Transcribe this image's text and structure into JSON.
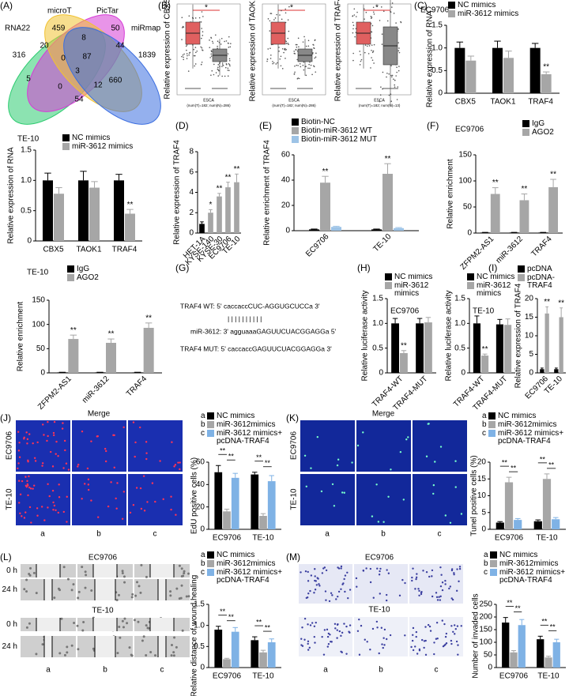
{
  "panel_labels": [
    "(A)",
    "(B)",
    "(C)",
    "(D)",
    "(E)",
    "(F)",
    "(G)",
    "(H)",
    "(I)",
    "(J)",
    "(K)",
    "(L)",
    "(M)"
  ],
  "venn": {
    "sets": [
      {
        "name": "RNA22",
        "color": "#2ecc71"
      },
      {
        "name": "microT",
        "color": "#d63cd6"
      },
      {
        "name": "PicTar",
        "color": "#f1c232"
      },
      {
        "name": "miRmap",
        "color": "#3d6fe0"
      }
    ],
    "counts": [
      316,
      459,
      50,
      1839,
      20,
      8,
      44,
      0,
      87,
      660,
      5,
      3,
      12,
      54,
      0
    ]
  },
  "expression_plots": [
    {
      "ylabel": "Relative expression of CBX5",
      "star": "*",
      "xlabel": "ESCA",
      "note": "(num(T)=182; num(N)=286)"
    },
    {
      "ylabel": "Relative expression of TAOK1",
      "star": "*",
      "xlabel": "ESCA",
      "note": "(num(T)=182; num(N)=286)"
    },
    {
      "ylabel": "Relative expression of TRAF4",
      "star": "*",
      "xlabel": "ESCA",
      "note": "(num(T)=182; num(N)=13)"
    }
  ],
  "sequence_panel": {
    "lines": [
      "TRAF4  WT: 5' caccaccCUC-AGGUGCUCCa 3'",
      "| | | |   | | | | | |",
      "miR-3612: 3' agguaaaGAGUUCUACGGAGGa 5'",
      "TRAF4  MUT: 5' caccaccGAGUUCUACGGAGGa 3'"
    ]
  },
  "micrographs": [
    {
      "title": "Merge",
      "rows": [
        "EC9706",
        "TE-10"
      ],
      "cols": [
        "a",
        "b",
        "c"
      ]
    },
    {
      "title": "Merge",
      "rows": [
        "EC9706",
        "TE-10"
      ],
      "cols": [
        "a",
        "b",
        "c"
      ]
    },
    {
      "groups": [
        {
          "title": "EC9706",
          "rows": [
            "0 h",
            "24 h"
          ]
        },
        {
          "title": "TE-10",
          "rows": [
            "0 h",
            "24 h"
          ]
        }
      ],
      "cols": [
        "a",
        "b",
        "c"
      ]
    },
    {
      "groups": [
        {
          "title": "EC9706"
        },
        {
          "title": "TE-10"
        }
      ],
      "cols": [
        "a",
        "b",
        "c"
      ]
    }
  ],
  "chart_data": [
    {
      "type": "bar",
      "title": "EC9706",
      "ylabel": "Relative expression of RNA",
      "categories": [
        "CBX5",
        "TAOK1",
        "TRAF4"
      ],
      "series": [
        {
          "name": "NC mimics",
          "color": "#000000",
          "values": [
            1,
            1,
            1
          ],
          "errors": [
            0.13,
            0.15,
            0.1
          ]
        },
        {
          "name": "miR-3612 mimics",
          "color": "#a6a6a6",
          "values": [
            0.72,
            0.78,
            0.42
          ],
          "errors": [
            0.1,
            0.15,
            0.05
          ],
          "sig": [
            null,
            null,
            "**"
          ]
        }
      ],
      "ylim": [
        0,
        1.5
      ],
      "yticks": [
        0,
        0.5,
        {
          "value": 1,
          "label": "1.0"
        },
        1.5
      ]
    },
    {
      "type": "bar",
      "title": "TE-10",
      "ylabel": "Relative expression of RNA",
      "categories": [
        "CBX5",
        "TAOK1",
        "TRAF4"
      ],
      "series": [
        {
          "name": "NC mimics",
          "color": "#000000",
          "values": [
            1,
            1,
            1
          ],
          "errors": [
            0.12,
            0.15,
            0.1
          ]
        },
        {
          "name": "miR-3612 mimics",
          "color": "#a6a6a6",
          "values": [
            0.78,
            0.88,
            0.45
          ],
          "errors": [
            0.1,
            0.1,
            0.07
          ],
          "sig": [
            null,
            null,
            "**"
          ]
        }
      ],
      "ylim": [
        0,
        1.5
      ],
      "yticks": [
        0,
        0.5,
        {
          "value": 1,
          "label": "1.0"
        },
        1.5
      ]
    },
    {
      "type": "bar",
      "ylabel": "Relative expression of TRAF4",
      "categories": [
        "HET-1A",
        "KYSE-140",
        "KYSE-30",
        "EC9706",
        "TE-10"
      ],
      "values": [
        0.9,
        2.0,
        3.6,
        4.5,
        5.0
      ],
      "errors": [
        0.2,
        0.3,
        0.3,
        0.5,
        0.8
      ],
      "sig": [
        null,
        "*",
        "**",
        "**",
        "**"
      ],
      "colors": [
        "#000000",
        "#a6a6a6",
        "#a6a6a6",
        "#a6a6a6",
        "#a6a6a6"
      ],
      "ylim": [
        0,
        8
      ],
      "yticks": [
        0,
        2,
        4,
        6,
        8
      ]
    },
    {
      "type": "bar",
      "ylabel": "Relative enrichment of TRAF4",
      "categories": [
        "EC9706",
        "TE-10"
      ],
      "series": [
        {
          "name": "Biotin-NC",
          "color": "#000000",
          "values": [
            1,
            1
          ],
          "errors": [
            0.3,
            0.3
          ]
        },
        {
          "name": "Biotin-miR-3612 WT",
          "color": "#a6a6a6",
          "values": [
            38,
            45
          ],
          "errors": [
            5,
            8
          ],
          "sig": [
            "**",
            "**"
          ]
        },
        {
          "name": "Biotin-miR-3612 MUT",
          "color": "#9dc3e6",
          "values": [
            3,
            2
          ],
          "errors": [
            0.5,
            0.5
          ]
        }
      ],
      "ylim": [
        0,
        60
      ],
      "yticks": [
        0,
        20,
        40,
        60
      ]
    },
    {
      "type": "bar",
      "title": "EC9706",
      "ylabel": "Relative enrichment",
      "categories": [
        "ZFPM2-AS1",
        "miR-3612",
        "TRAF4"
      ],
      "series": [
        {
          "name": "IgG",
          "color": "#000000",
          "values": [
            1,
            1,
            1
          ],
          "errors": [
            0.3,
            0.3,
            0.3
          ]
        },
        {
          "name": "AGO2",
          "color": "#a6a6a6",
          "values": [
            75,
            63,
            88
          ],
          "errors": [
            12,
            12,
            15
          ],
          "sig": [
            "**",
            "**",
            "**"
          ]
        }
      ],
      "ylim": [
        0,
        150
      ],
      "yticks": [
        0,
        50,
        100,
        150
      ]
    },
    {
      "type": "bar",
      "title": "TE-10",
      "ylabel": "Relative enrichment",
      "categories": [
        "ZFPM2-AS1",
        "miR-3612",
        "TRAF4"
      ],
      "series": [
        {
          "name": "IgG",
          "color": "#000000",
          "values": [
            1,
            1,
            1
          ],
          "errors": [
            0.3,
            0.3,
            0.3
          ]
        },
        {
          "name": "AGO2",
          "color": "#a6a6a6",
          "values": [
            70,
            62,
            93
          ],
          "errors": [
            8,
            8,
            10
          ],
          "sig": [
            "**",
            "**",
            "**"
          ]
        }
      ],
      "ylim": [
        0,
        150
      ],
      "yticks": [
        0,
        50,
        100,
        150
      ]
    },
    {
      "type": "bar",
      "title": "EC9706",
      "ylabel": "Relative luciferase activity",
      "categories": [
        "TRAF4-WT",
        "TRAF4-MUT"
      ],
      "series": [
        {
          "name": "NC mimics",
          "color": "#000000",
          "values": [
            1,
            1
          ],
          "errors": [
            0.1,
            0.1
          ]
        },
        {
          "name": "miR-3612 mimics",
          "color": "#a6a6a6",
          "values": [
            0.4,
            1.02
          ],
          "errors": [
            0.05,
            0.1
          ],
          "sig": [
            "**",
            null
          ]
        }
      ],
      "ylim": [
        0,
        1.5
      ],
      "yticks": [
        0,
        0.5,
        {
          "value": 1,
          "label": "1.0"
        },
        1.5
      ]
    },
    {
      "type": "bar",
      "title": "TE-10",
      "ylabel": "Relative luciferase activity",
      "categories": [
        "TRAF4-WT",
        "TRAF4-MUT"
      ],
      "series": [
        {
          "name": "NC mimics",
          "color": "#000000",
          "values": [
            1,
            0.98
          ],
          "errors": [
            0.15,
            0.1
          ]
        },
        {
          "name": "miR-3612 mimics",
          "color": "#a6a6a6",
          "values": [
            0.35,
            0.97
          ],
          "errors": [
            0.03,
            0.12
          ],
          "sig": [
            "**",
            null
          ]
        }
      ],
      "ylim": [
        0,
        1.5
      ],
      "yticks": [
        0,
        0.5,
        {
          "value": 1,
          "label": "1.0"
        },
        1.5
      ]
    },
    {
      "type": "bar",
      "ylabel": "Relative expression of TRAF4",
      "categories": [
        "EC9706",
        "TE-10"
      ],
      "series": [
        {
          "name": "pcDNA",
          "color": "#000000",
          "values": [
            1,
            1
          ],
          "errors": [
            0.3,
            0.3
          ]
        },
        {
          "name": "pcDNA-TRAF4",
          "color": "#a6a6a6",
          "values": [
            16,
            15
          ],
          "errors": [
            1.8,
            2.5
          ],
          "sig": [
            "**",
            "**"
          ]
        }
      ],
      "ylim": [
        0,
        20
      ],
      "yticks": [
        0,
        5,
        10,
        15,
        20
      ]
    },
    {
      "type": "bar",
      "ylabel": "EdU positive cells (%)",
      "categories": [
        "EC9706",
        "TE-10"
      ],
      "legend_keys": [
        "a",
        "b",
        "c"
      ],
      "series": [
        {
          "name": "NC mimics",
          "color": "#000000",
          "values": [
            51,
            49
          ],
          "errors": [
            6,
            2
          ]
        },
        {
          "name": "miR-3612mimics",
          "color": "#a6a6a6",
          "values": [
            16,
            12
          ],
          "errors": [
            2,
            2
          ]
        },
        {
          "name": "miR-3612 mimics+ pcDNA-TRAF4",
          "color": "#7fb2e5",
          "values": [
            46,
            43
          ],
          "errors": [
            4,
            5
          ]
        }
      ],
      "brackets": [
        [
          "**",
          "**"
        ],
        [
          "**",
          "**"
        ]
      ],
      "ylim": [
        0,
        60
      ],
      "yticks": [
        0,
        20,
        40,
        60
      ]
    },
    {
      "type": "bar",
      "ylabel": "Tunel positive cells (%)",
      "categories": [
        "EC9706",
        "TE-10"
      ],
      "legend_keys": [
        "a",
        "b",
        "c"
      ],
      "series": [
        {
          "name": "NC mimics",
          "color": "#000000",
          "values": [
            2,
            2.4
          ],
          "errors": [
            0.3,
            0.4
          ]
        },
        {
          "name": "miR-3612mimics",
          "color": "#a6a6a6",
          "values": [
            14,
            15
          ],
          "errors": [
            1.5,
            1.5
          ]
        },
        {
          "name": "miR-3612 mimics+ pcDNA-TRAF4",
          "color": "#7fb2e5",
          "values": [
            2.8,
            3
          ],
          "errors": [
            0.4,
            0.5
          ]
        }
      ],
      "brackets": [
        [
          "**",
          "**"
        ],
        [
          "**",
          "**"
        ]
      ],
      "ylim": [
        0,
        20
      ],
      "yticks": [
        0,
        5,
        10,
        15,
        20
      ]
    },
    {
      "type": "bar",
      "ylabel": "Relative distance of wound healing",
      "categories": [
        "EC9706",
        "TE-10"
      ],
      "legend_keys": [
        "a",
        "b",
        "c"
      ],
      "series": [
        {
          "name": "NC mimics",
          "color": "#000000",
          "values": [
            0.9,
            0.65
          ],
          "errors": [
            0.08,
            0.08
          ]
        },
        {
          "name": "miR-3612mimics",
          "color": "#a6a6a6",
          "values": [
            0.2,
            0.36
          ],
          "errors": [
            0.02,
            0.05
          ]
        },
        {
          "name": "miR-3612 mimics+ pcDNA-TRAF4",
          "color": "#7fb2e5",
          "values": [
            0.85,
            0.6
          ],
          "errors": [
            0.1,
            0.08
          ]
        }
      ],
      "brackets": [
        [
          "**",
          "**"
        ],
        [
          "**",
          "**"
        ]
      ],
      "ylim": [
        0,
        1.5
      ],
      "yticks": [
        0,
        0.5,
        {
          "value": 1,
          "label": "1.0"
        },
        1.5
      ]
    },
    {
      "type": "bar",
      "ylabel": "Number of invaded cells",
      "categories": [
        "EC9706",
        "TE-10"
      ],
      "legend_keys": [
        "a",
        "b",
        "c"
      ],
      "series": [
        {
          "name": "NC mimics",
          "color": "#000000",
          "values": [
            178,
            112
          ],
          "errors": [
            20,
            12
          ]
        },
        {
          "name": "miR-3612mimics",
          "color": "#a6a6a6",
          "values": [
            60,
            40
          ],
          "errors": [
            7,
            5
          ]
        },
        {
          "name": "miR-3612 mimics+ pcDNA-TRAF4",
          "color": "#7fb2e5",
          "values": [
            168,
            100
          ],
          "errors": [
            22,
            12
          ]
        }
      ],
      "brackets": [
        [
          "**",
          "**"
        ],
        [
          "**",
          "**"
        ]
      ],
      "ylim": [
        0,
        250
      ],
      "yticks": [
        0,
        50,
        100,
        150,
        200,
        250
      ]
    }
  ]
}
